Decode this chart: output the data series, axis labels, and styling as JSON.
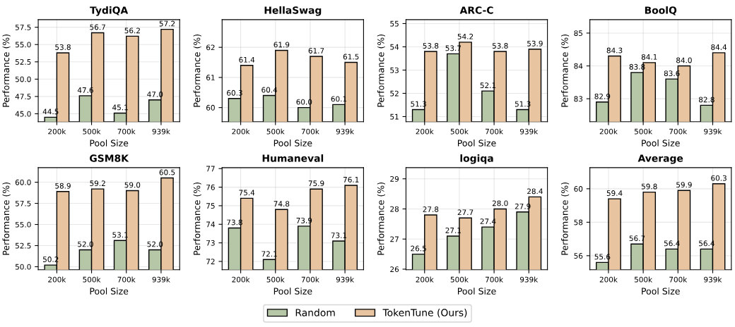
{
  "chart_data": [
    {
      "type": "bar",
      "title": "TydiQA",
      "xlabel": "Pool Size",
      "ylabel": "Performance (%)",
      "categories": [
        "200k",
        "500k",
        "700k",
        "939k"
      ],
      "series": [
        {
          "name": "Random",
          "color": "#b5c7a6",
          "values": [
            44.5,
            47.6,
            45.1,
            47.0
          ],
          "value_labels": [
            "44.5",
            "47.6",
            "45.1",
            "47.0"
          ]
        },
        {
          "name": "TokenTune (Ours)",
          "color": "#e8c5a0",
          "values": [
            53.8,
            56.7,
            56.2,
            57.2
          ],
          "value_labels": [
            "53.8",
            "56.7",
            "56.2",
            "57.2"
          ]
        }
      ],
      "ylim": [
        43.85,
        58.6
      ],
      "yticks": [
        {
          "value": 45,
          "label": "45.0"
        },
        {
          "value": 47.5,
          "label": "47.5"
        },
        {
          "value": 50,
          "label": "50.0"
        },
        {
          "value": 52.5,
          "label": "52.5"
        },
        {
          "value": 55,
          "label": "55.0"
        },
        {
          "value": 57.5,
          "label": "57.5"
        }
      ],
      "grid": true,
      "legend": "bottom"
    },
    {
      "type": "bar",
      "title": "HellaSwag",
      "xlabel": "Pool Size",
      "ylabel": "Performance (%)",
      "categories": [
        "200k",
        "500k",
        "700k",
        "939k"
      ],
      "series": [
        {
          "color": "#b5c7a6",
          "values": [
            60.3,
            60.4,
            60.0,
            60.1
          ],
          "value_labels": [
            "60.3",
            "60.4",
            "60.0",
            "60.1"
          ]
        },
        {
          "color": "#e8c5a0",
          "values": [
            61.4,
            61.9,
            61.7,
            61.5
          ],
          "value_labels": [
            "61.4",
            "61.9",
            "61.7",
            "61.5"
          ]
        }
      ],
      "ylim": [
        59.53,
        62.92
      ],
      "yticks": [
        60,
        61,
        62
      ],
      "grid": true
    },
    {
      "type": "bar",
      "title": "ARC-C",
      "xlabel": "Pool Size",
      "ylabel": "Performance (%)",
      "categories": [
        "200k",
        "500k",
        "700k",
        "939k"
      ],
      "series": [
        {
          "color": "#b5c7a6",
          "values": [
            51.3,
            53.7,
            52.1,
            51.3
          ],
          "value_labels": [
            "51.3",
            "53.7",
            "52.1",
            "51.3"
          ]
        },
        {
          "color": "#e8c5a0",
          "values": [
            53.8,
            54.2,
            53.8,
            53.9
          ],
          "value_labels": [
            "53.8",
            "54.2",
            "53.8",
            "53.9"
          ]
        }
      ],
      "ylim": [
        50.78,
        55.17
      ],
      "yticks": [
        51,
        52,
        53,
        54,
        55
      ],
      "grid": true
    },
    {
      "type": "bar",
      "title": "BoolQ",
      "xlabel": "Pool Size",
      "ylabel": "Performance (%)",
      "categories": [
        "200k",
        "500k",
        "700k",
        "939k"
      ],
      "series": [
        {
          "color": "#b5c7a6",
          "values": [
            82.9,
            83.8,
            83.6,
            82.8
          ],
          "value_labels": [
            "82.9",
            "83.8",
            "83.6",
            "82.8"
          ]
        },
        {
          "color": "#e8c5a0",
          "values": [
            84.3,
            84.1,
            84.0,
            84.4
          ],
          "value_labels": [
            "84.3",
            "84.1",
            "84.0",
            "84.4"
          ]
        }
      ],
      "ylim": [
        82.3,
        85.41
      ],
      "yticks": [
        83,
        84,
        85
      ],
      "grid": true
    },
    {
      "type": "bar",
      "title": "GSM8K",
      "xlabel": "Pool Size",
      "ylabel": "Performance (%)",
      "categories": [
        "200k",
        "500k",
        "700k",
        "939k"
      ],
      "series": [
        {
          "color": "#b5c7a6",
          "values": [
            50.2,
            52.0,
            53.1,
            52.0
          ],
          "value_labels": [
            "50.2",
            "52.0",
            "53.1",
            "52.0"
          ]
        },
        {
          "color": "#e8c5a0",
          "values": [
            58.9,
            59.2,
            59.0,
            60.5
          ],
          "value_labels": [
            "58.9",
            "59.2",
            "59.0",
            "60.5"
          ]
        }
      ],
      "ylim": [
        49.64,
        61.72
      ],
      "yticks": [
        {
          "value": 50,
          "label": "50.0"
        },
        {
          "value": 52.5,
          "label": "52.5"
        },
        {
          "value": 55,
          "label": "55.0"
        },
        {
          "value": 57.5,
          "label": "57.5"
        },
        {
          "value": 60,
          "label": "60.0"
        }
      ],
      "grid": true
    },
    {
      "type": "bar",
      "title": "Humaneval",
      "xlabel": "Pool Size",
      "ylabel": "Performance (%)",
      "categories": [
        "200k",
        "500k",
        "700k",
        "939k"
      ],
      "series": [
        {
          "color": "#b5c7a6",
          "values": [
            73.8,
            72.1,
            73.9,
            73.1
          ],
          "value_labels": [
            "73.8",
            "72.1",
            "73.9",
            "73.1"
          ]
        },
        {
          "color": "#e8c5a0",
          "values": [
            75.4,
            74.8,
            75.9,
            76.1
          ],
          "value_labels": [
            "75.4",
            "74.8",
            "75.9",
            "76.1"
          ]
        }
      ],
      "ylim": [
        71.55,
        77.05
      ],
      "yticks": [
        72,
        73,
        74,
        75,
        76,
        77
      ],
      "grid": true
    },
    {
      "type": "bar",
      "title": "logiqa",
      "xlabel": "Pool Size",
      "ylabel": "Performance (%)",
      "categories": [
        "200k",
        "500k",
        "700k",
        "939k"
      ],
      "series": [
        {
          "color": "#b5c7a6",
          "values": [
            26.5,
            27.1,
            27.4,
            27.9
          ],
          "value_labels": [
            "26.5",
            "27.1",
            "27.4",
            "27.9"
          ]
        },
        {
          "color": "#e8c5a0",
          "values": [
            27.8,
            27.7,
            28.0,
            28.4
          ],
          "value_labels": [
            "27.8",
            "27.7",
            "28.0",
            "28.4"
          ]
        }
      ],
      "ylim": [
        25.98,
        29.37
      ],
      "yticks": [
        26,
        27,
        28,
        29
      ],
      "grid": true
    },
    {
      "type": "bar",
      "title": "Average",
      "xlabel": "Pool Size",
      "ylabel": "Performance (%)",
      "categories": [
        "200k",
        "500k",
        "700k",
        "939k"
      ],
      "series": [
        {
          "color": "#b5c7a6",
          "values": [
            55.6,
            56.7,
            56.4,
            56.4
          ],
          "value_labels": [
            "55.6",
            "56.7",
            "56.4",
            "56.4"
          ]
        },
        {
          "color": "#e8c5a0",
          "values": [
            59.4,
            59.8,
            59.9,
            60.3
          ],
          "value_labels": [
            "59.4",
            "59.8",
            "59.9",
            "60.3"
          ]
        }
      ],
      "ylim": [
        55.16,
        61.26
      ],
      "yticks": [
        56,
        58,
        60
      ],
      "grid": true
    }
  ]
}
